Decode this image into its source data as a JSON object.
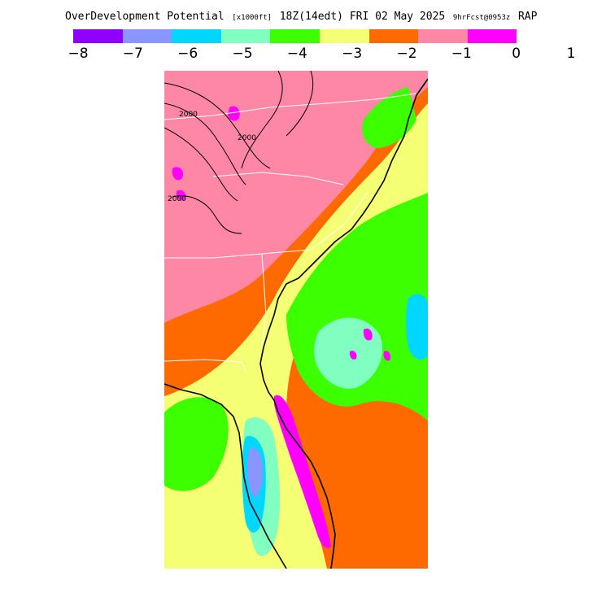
{
  "title": {
    "product": "OverDevelopment Potential",
    "units": "[x1000ft]",
    "valid": "18Z(14edt) FRI 02 May 2025",
    "fcst": "9hrFcst@0953z",
    "model": "RAP"
  },
  "colorbar": {
    "colors": [
      "#8f00ff",
      "#8a96ff",
      "#00d7ff",
      "#80ffc0",
      "#3cff00",
      "#f5ff73",
      "#ff6a00",
      "#ff87a6",
      "#ff00ff"
    ],
    "labels": [
      "−8",
      "−7",
      "−6",
      "−5",
      "−4",
      "−3",
      "−2",
      "−1",
      "0",
      "1"
    ]
  },
  "map": {
    "contour_labels": [
      "2000",
      "2000",
      "2000"
    ]
  }
}
